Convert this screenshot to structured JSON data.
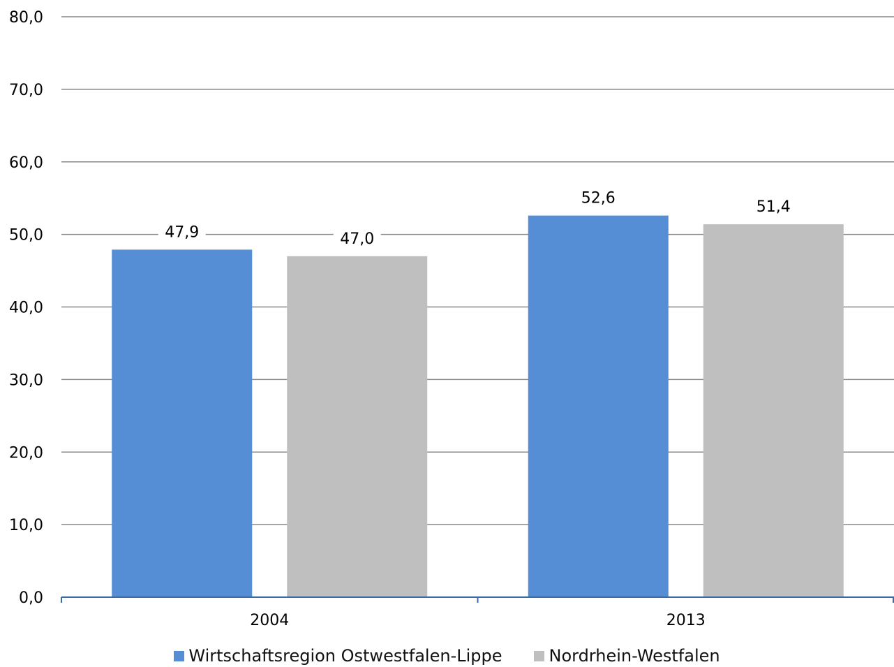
{
  "chart_data": {
    "type": "bar",
    "categories": [
      "2004",
      "2013"
    ],
    "series": [
      {
        "name": "Wirtschaftsregion Ostwestfalen-Lippe",
        "values": [
          47.9,
          52.6
        ],
        "labels": [
          "47,9",
          "52,6"
        ],
        "color": "#558ed5"
      },
      {
        "name": "Nordrhein-Westfalen",
        "values": [
          47.0,
          51.4
        ],
        "labels": [
          "47,0",
          "51,4"
        ],
        "color": "#bfbfbf"
      }
    ],
    "ylim": [
      0,
      80
    ],
    "yticks": [
      0,
      10,
      20,
      30,
      40,
      50,
      60,
      70,
      80
    ],
    "ytick_labels": [
      "0,0",
      "10,0",
      "20,0",
      "30,0",
      "40,0",
      "50,0",
      "60,0",
      "70,0",
      "80,0"
    ],
    "title": "",
    "xlabel": "",
    "ylabel": "",
    "grid": true,
    "legend_position": "bottom",
    "gridline_color": "#878787",
    "axis_color": "#3b6aa8"
  }
}
